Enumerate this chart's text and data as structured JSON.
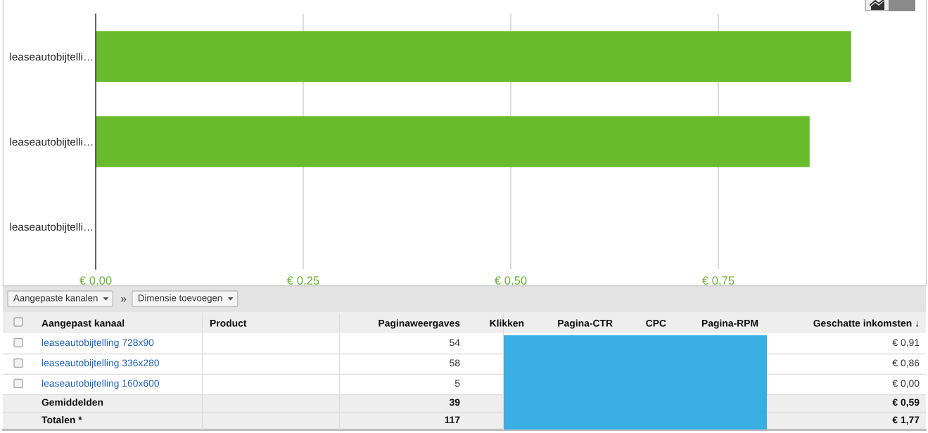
{
  "chart_data": [
    {
      "type": "bar",
      "orientation": "horizontal",
      "categories": [
        "leaseautobijtelli…",
        "leaseautobijtelli…",
        "leaseautobijtelli…"
      ],
      "values": [
        0.91,
        0.86,
        0.0
      ],
      "color": "#68bc2b",
      "xlim": [
        0,
        1.0
      ],
      "xticks": [
        {
          "value": 0,
          "label": "€ 0,00"
        },
        {
          "value": 0.25,
          "label": "€ 0,25"
        },
        {
          "value": 0.5,
          "label": "€ 0,50"
        },
        {
          "value": 0.75,
          "label": "€ 0,75"
        }
      ],
      "grid": "x"
    },
    {
      "type": "other",
      "annotations": [
        "Aangepaste kanalen",
        "»",
        "Dimensie toevoegen"
      ],
      "categories": [
        "Aangepast kanaal",
        "Product",
        "Paginaweergaves",
        "Klikken",
        "Pagina-CTR",
        "CPC",
        "Pagina-RPM",
        "Geschatte inkomsten ↓"
      ],
      "y_categories": [
        "leaseautobijtelling 728x90",
        "leaseautobijtelling 336x280",
        "leaseautobijtelling 160x600",
        "Gemiddelden",
        "Totalen *"
      ],
      "cell_labels": [
        [
          null,
          "54",
          null,
          null,
          null,
          null,
          "€ 0,91"
        ],
        [
          null,
          "58",
          null,
          null,
          null,
          null,
          "€ 0,86"
        ],
        [
          null,
          "5",
          null,
          null,
          null,
          null,
          "€ 0,00"
        ],
        [
          null,
          "39",
          null,
          null,
          null,
          null,
          "€ 0,59"
        ],
        [
          null,
          "117",
          null,
          null,
          null,
          null,
          "€ 1,77"
        ]
      ]
    }
  ]
}
